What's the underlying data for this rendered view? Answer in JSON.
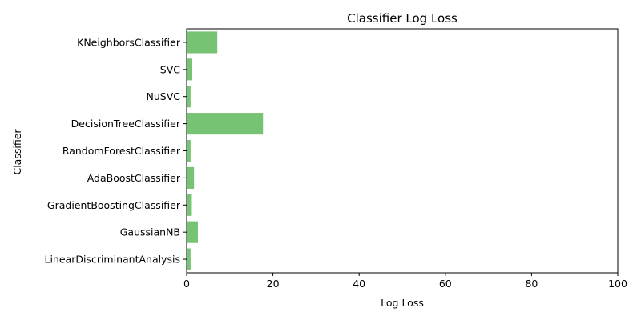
{
  "chart_data": {
    "type": "bar",
    "orientation": "horizontal",
    "title": "Classifier Log Loss",
    "xlabel": "Log Loss",
    "ylabel": "Classifier",
    "xlim": [
      0,
      100
    ],
    "xticks": [
      "0",
      "20",
      "40",
      "60",
      "80",
      "100"
    ],
    "grid": false,
    "bar_color": "#77c374",
    "categories": [
      "KNeighborsClassifier",
      "SVC",
      "NuSVC",
      "DecisionTreeClassifier",
      "RandomForestClassifier",
      "AdaBoostClassifier",
      "GradientBoostingClassifier",
      "GaussianNB",
      "LinearDiscriminantAnalysis"
    ],
    "values": [
      7.1,
      1.3,
      0.9,
      17.7,
      0.9,
      1.7,
      1.2,
      2.6,
      0.9
    ]
  }
}
